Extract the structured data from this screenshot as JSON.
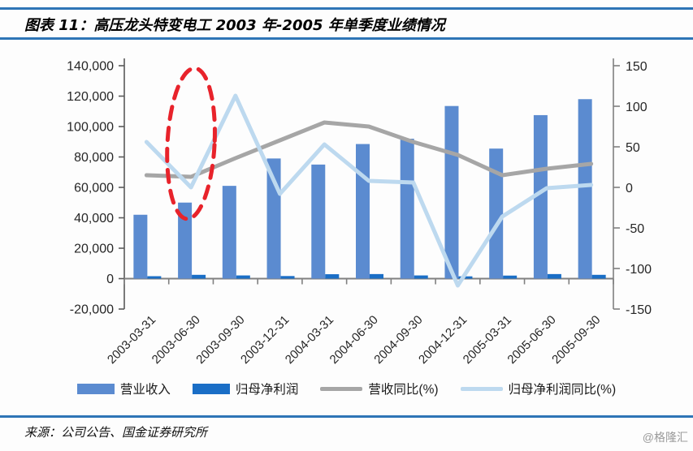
{
  "header": {
    "title": "图表 11：高压龙头特变电工 2003 年-2005 年单季度业绩情况"
  },
  "footer": {
    "source": "来源：公司公告、国金证券研究所",
    "watermark": "@格隆汇"
  },
  "colors": {
    "rule_blue": "#2e75b6",
    "revenue_bar": "#5b8bd0",
    "net_profit_bar": "#1a6ec6",
    "revenue_yoy_line": "#a6a6a6",
    "net_profit_yoy_line": "#bdd9ef",
    "annotation_red": "#e8232b",
    "axis_gray": "#808080"
  },
  "chart_data": {
    "type": "bar",
    "subtype": "combo-bar-line-dual-axis",
    "grid": "off",
    "legend_position": "bottom",
    "categories": [
      "2003-03-31",
      "2003-06-30",
      "2003-09-30",
      "2003-12-31",
      "2004-03-31",
      "2004-06-30",
      "2004-09-30",
      "2004-12-31",
      "2005-03-31",
      "2005-06-30",
      "2005-09-30"
    ],
    "bar_series": [
      {
        "key": "revenue",
        "name": "营业收入",
        "axis": "left",
        "color": "#5b8bd0",
        "values": [
          42000,
          50000,
          61000,
          79000,
          75000,
          88500,
          92000,
          113500,
          85500,
          107500,
          118000
        ]
      },
      {
        "key": "net-profit",
        "name": "归母净利润",
        "axis": "left",
        "color": "#1a6ec6",
        "values": [
          1600,
          2500,
          2100,
          1700,
          2900,
          3000,
          2100,
          1500,
          2000,
          3000,
          2500
        ]
      }
    ],
    "line_series": [
      {
        "key": "revenue-yoy",
        "name": "营收同比(%)",
        "axis": "right",
        "color": "#a6a6a6",
        "values": [
          15,
          13,
          36,
          58,
          80,
          75,
          56,
          40,
          15,
          23,
          29
        ]
      },
      {
        "key": "net-profit-yoy",
        "name": "归母净利润同比(%)",
        "axis": "right",
        "color": "#bdd9ef",
        "values": [
          56,
          0,
          113,
          -8,
          53,
          8,
          6,
          -121,
          -36,
          -1,
          3
        ]
      }
    ],
    "y_left": {
      "range": [
        -20000,
        140000
      ],
      "tick_step": 20000,
      "ticks": [
        {
          "value": 140000,
          "label": "140,000"
        },
        {
          "value": 120000,
          "label": "120,000"
        },
        {
          "value": 100000,
          "label": "100,000"
        },
        {
          "value": 80000,
          "label": "80,000"
        },
        {
          "value": 60000,
          "label": "60,000"
        },
        {
          "value": 40000,
          "label": "40,000"
        },
        {
          "value": 20000,
          "label": "20,000"
        },
        {
          "value": 0,
          "label": "0"
        },
        {
          "value": -20000,
          "label": "-20,000"
        }
      ]
    },
    "y_right": {
      "range": [
        -150,
        150
      ],
      "tick_step": 50,
      "ticks": [
        {
          "value": 150,
          "label": "150"
        },
        {
          "value": 100,
          "label": "100"
        },
        {
          "value": 50,
          "label": "50"
        },
        {
          "value": 0,
          "label": "0"
        },
        {
          "value": -50,
          "label": "-50"
        },
        {
          "value": -100,
          "label": "-100"
        },
        {
          "value": -150,
          "label": "-150"
        }
      ]
    },
    "annotation": {
      "type": "dashed-ellipse-highlight",
      "target_category": "2003-06-30",
      "color": "#e8232b"
    },
    "legend": [
      "营业收入",
      "归母净利润",
      "营收同比(%)",
      "归母净利润同比(%)"
    ]
  }
}
